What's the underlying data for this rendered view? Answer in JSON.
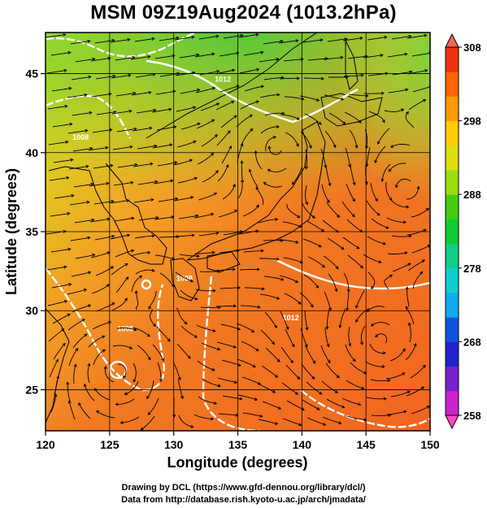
{
  "title": "MSM 09Z19Aug2024 (1013.2hPa)",
  "credits": {
    "line1": "Drawing by DCL (https://www.gfd-dennou.org/library/dcl/)",
    "line2": "Data from http://database.rish.kyoto-u.ac.jp/arch/jmadata/"
  },
  "map": {
    "x_axis": {
      "label": "Longitude (degrees)",
      "range": [
        120,
        150
      ],
      "ticks": [
        120,
        125,
        130,
        135,
        140,
        145,
        150
      ],
      "tick_labels": [
        "120",
        "125",
        "130",
        "135",
        "140",
        "145",
        "150"
      ]
    },
    "y_axis": {
      "label": "Latitude (degrees)",
      "range": [
        22.4,
        47.6
      ],
      "ticks": [
        25,
        30,
        35,
        40,
        45
      ],
      "tick_labels": [
        "25",
        "30",
        "35",
        "40",
        "45"
      ]
    },
    "grid": true,
    "contour_labels": [
      {
        "text": "1008",
        "lon": 125.6,
        "lat": 28.7
      },
      {
        "text": "1008",
        "lon": 130.2,
        "lat": 31.9
      },
      {
        "text": "1008",
        "lon": 122.1,
        "lat": 40.8
      },
      {
        "text": "1012",
        "lon": 133.2,
        "lat": 44.5
      },
      {
        "text": "1012",
        "lon": 138.5,
        "lat": 29.4
      }
    ]
  },
  "colorbar": {
    "min": 258,
    "max": 308,
    "tick_labels": [
      "308",
      "298",
      "288",
      "278",
      "268",
      "258"
    ],
    "tick_values": [
      308,
      298,
      288,
      278,
      268,
      258
    ],
    "colors": [
      "#cc22cc",
      "#7722cc",
      "#2222cc",
      "#1155dd",
      "#11aaee",
      "#11cccc",
      "#11cc88",
      "#11cc33",
      "#44cc11",
      "#99dd11",
      "#dddd11",
      "#ffcc00",
      "#ff9900",
      "#ff6600",
      "#ee3311"
    ],
    "low_arrow_color": "#ff44cc",
    "high_arrow_color": "#ff6655"
  }
}
